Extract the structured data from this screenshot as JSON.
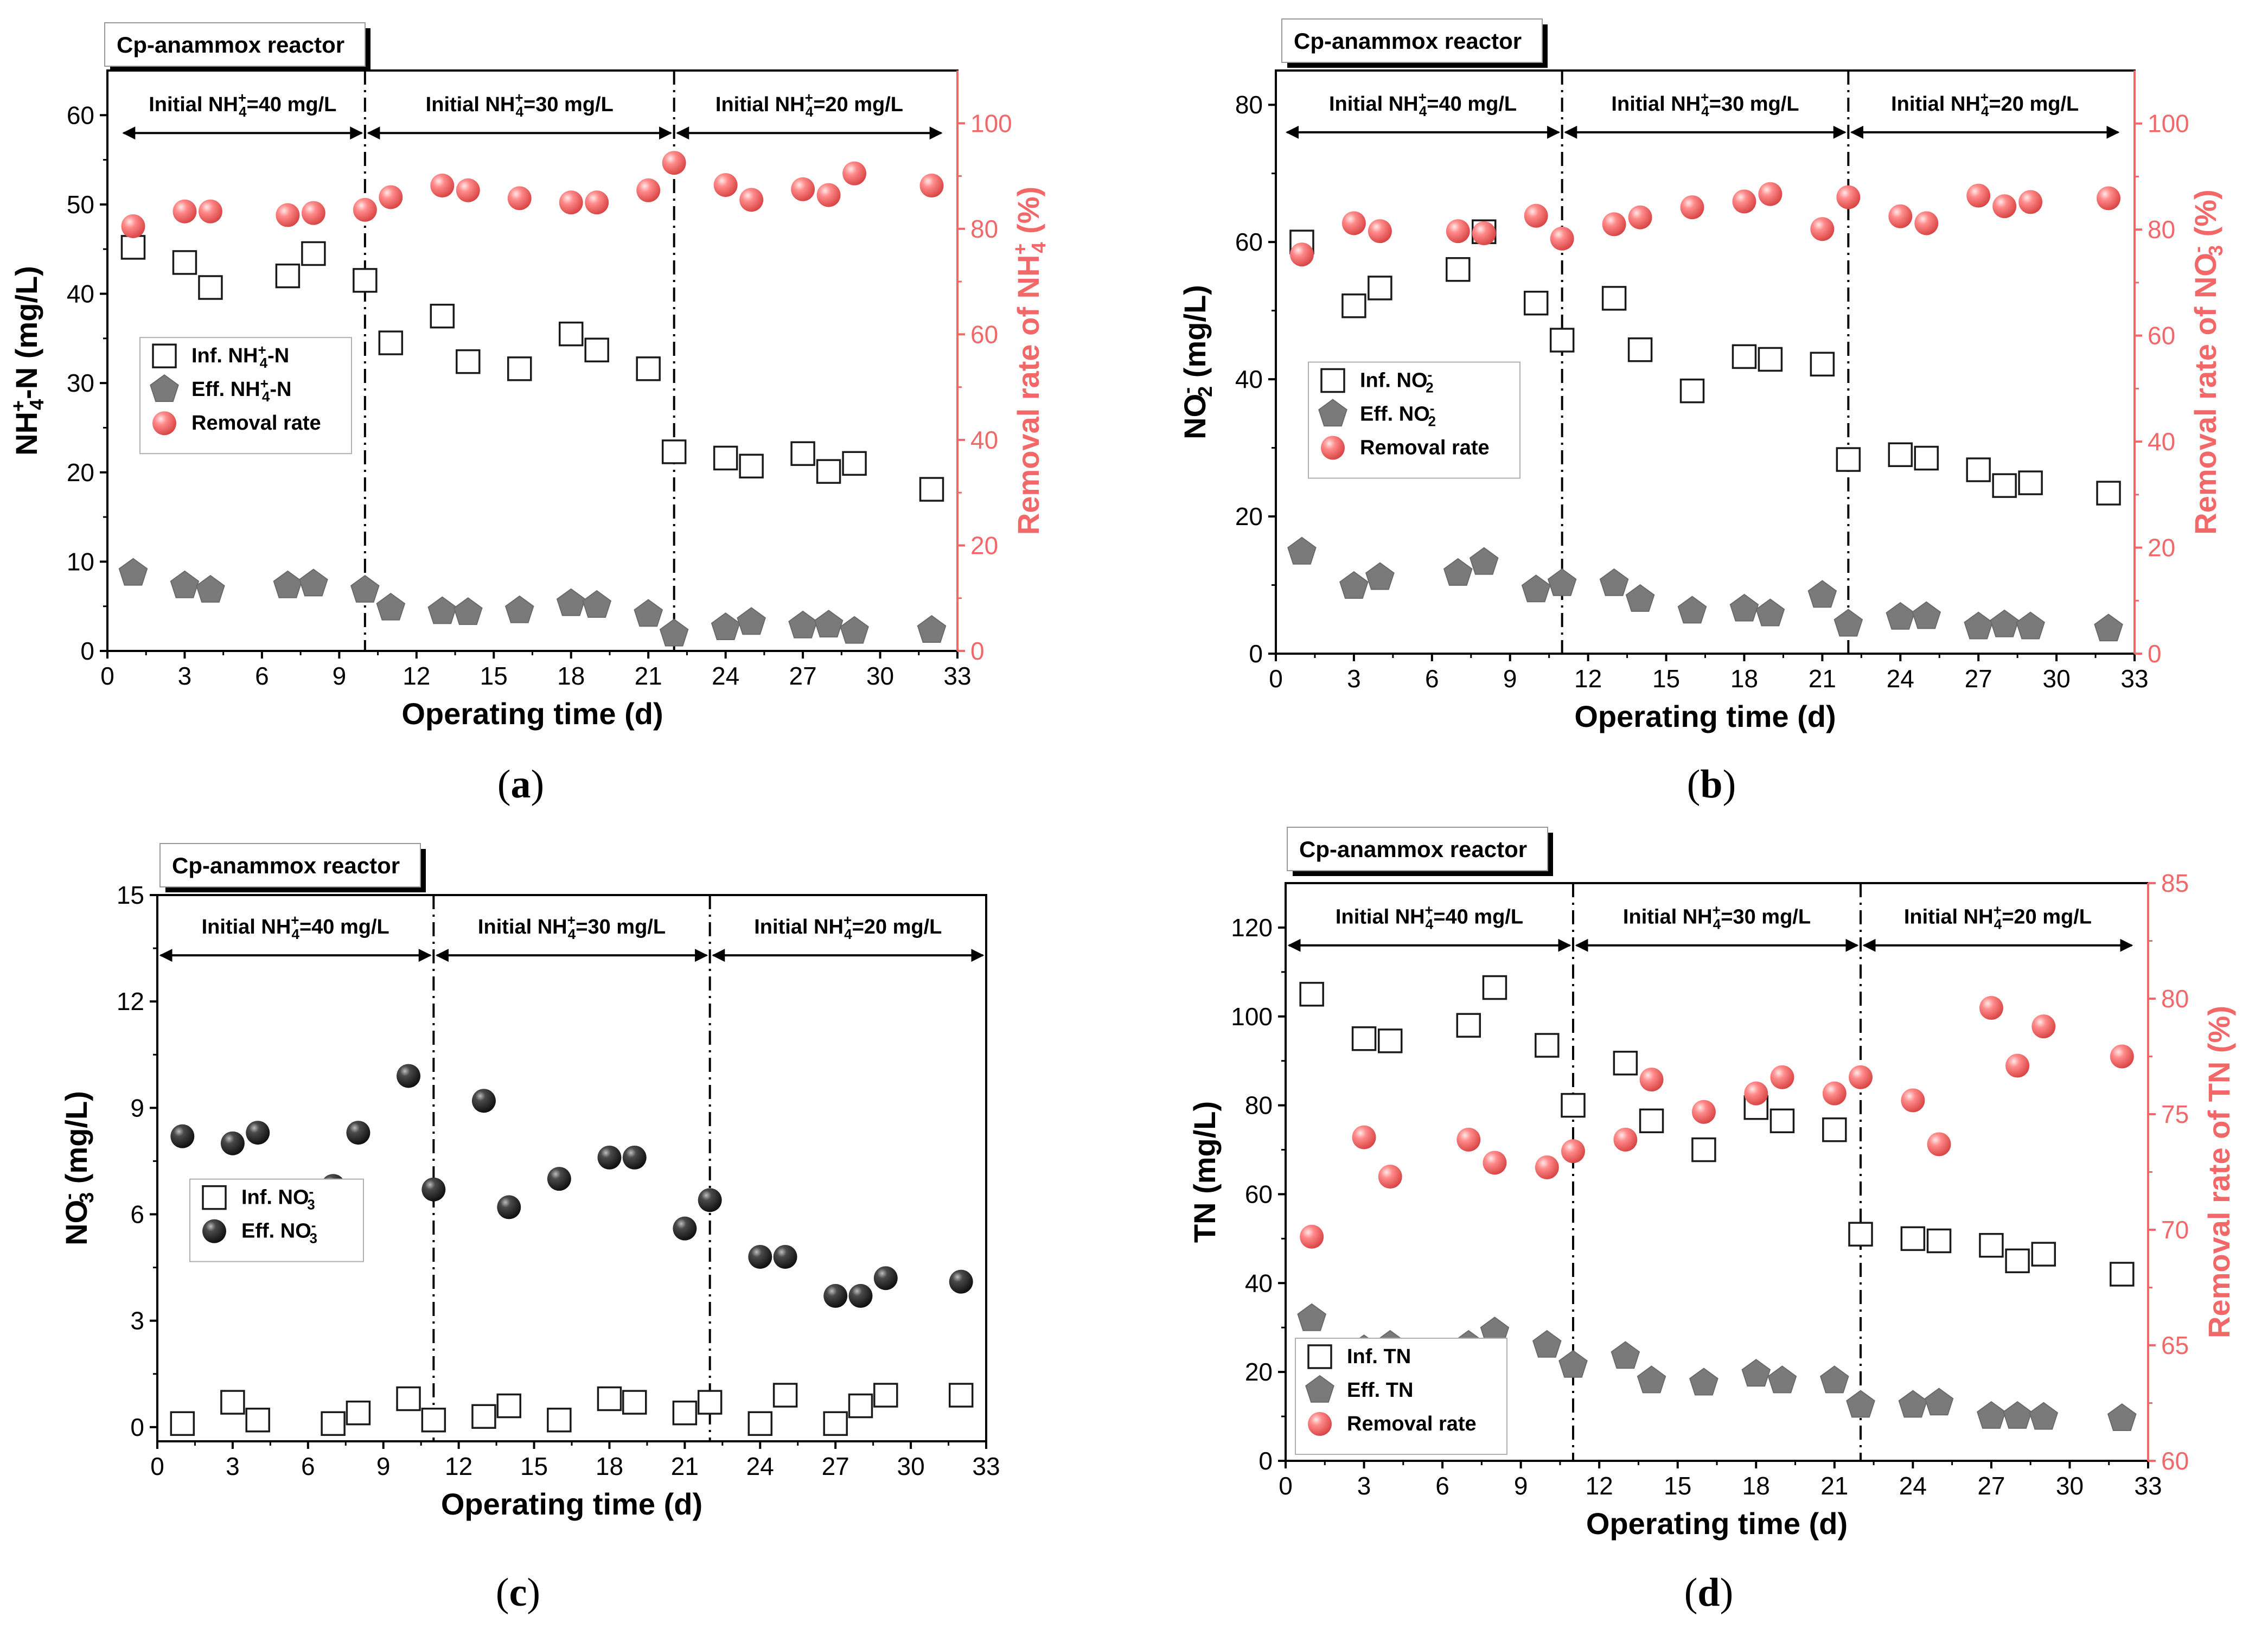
{
  "colors": {
    "axis": "#000000",
    "accent_red": "#f26868",
    "influent_marker": "#ffffff",
    "effluent_gray": "#7a7a7a",
    "nitrate_effluent": "#2e2e2e"
  },
  "chart_data": [
    {
      "type": "scatter",
      "panel": "(a)",
      "title": "Cp-anammox reactor",
      "xlabel": "Operating time (d)",
      "ylabel": "NH4+-N (mg/L)",
      "ylabel_parts": {
        "base": "NH",
        "sub": "4",
        "sup": "+",
        "tail": "-N  (mg/L)"
      },
      "y2label": "Removal rate of NH4+ (%)",
      "y2label_parts": {
        "base": "Removal rate of NH",
        "sub": "4",
        "sup": "+",
        "tail": " (%)"
      },
      "xlim": [
        0,
        33
      ],
      "ylim": [
        0,
        65
      ],
      "y2lim": [
        0,
        110
      ],
      "xticks": [
        0,
        3,
        6,
        9,
        12,
        15,
        18,
        21,
        24,
        27,
        30,
        33
      ],
      "yticks": [
        0,
        10,
        20,
        30,
        40,
        50,
        60
      ],
      "y2ticks": [
        0,
        20,
        40,
        60,
        80,
        100
      ],
      "dividers": [
        10,
        22
      ],
      "periods": [
        {
          "label": "Initial NH4+=40 mg/L",
          "start": 0.5,
          "end": 10
        },
        {
          "label": "Initial NH4+=30 mg/L",
          "start": 10,
          "end": 22
        },
        {
          "label": "Initial NH4+=20 mg/L",
          "start": 22,
          "end": 32.5
        }
      ],
      "period_arrow_y": 58,
      "legend": {
        "position": "middle-left",
        "entries": [
          "Inf. NH4+-N",
          "Eff. NH4+-N",
          "Removal rate"
        ]
      },
      "series": [
        {
          "name": "Inf. NH4+-N",
          "marker": "square",
          "axis": "left",
          "x": [
            1,
            3,
            4,
            7,
            8,
            10,
            11,
            13,
            14,
            16,
            18,
            19,
            21,
            22,
            24,
            25,
            27,
            28,
            29,
            32
          ],
          "y": [
            45.2,
            43.5,
            40.7,
            42,
            44.5,
            41.5,
            34.5,
            37.5,
            32.4,
            31.6,
            35.5,
            33.7,
            31.6,
            22.3,
            21.6,
            20.7,
            22.1,
            20.1,
            21,
            18.1
          ]
        },
        {
          "name": "Eff. NH4+-N",
          "marker": "pentagon",
          "axis": "left",
          "x": [
            1,
            3,
            4,
            7,
            8,
            10,
            11,
            13,
            14,
            16,
            18,
            19,
            21,
            22,
            24,
            25,
            27,
            28,
            29,
            32
          ],
          "y": [
            8.7,
            7.3,
            6.8,
            7.3,
            7.5,
            6.8,
            4.8,
            4.4,
            4.3,
            4.5,
            5.3,
            5.1,
            4.1,
            1.9,
            2.6,
            3.2,
            2.8,
            2.9,
            2.2,
            2.3
          ]
        },
        {
          "name": "Removal rate",
          "marker": "sphere",
          "axis": "right",
          "x": [
            1,
            3,
            4,
            7,
            8,
            10,
            11,
            13,
            14,
            16,
            18,
            19,
            21,
            22,
            24,
            25,
            27,
            28,
            29,
            32
          ],
          "y": [
            80.5,
            83.3,
            83.3,
            82.6,
            83,
            83.6,
            86,
            88.2,
            87.3,
            85.8,
            85,
            85,
            87.3,
            92.5,
            88.3,
            85.5,
            87.5,
            86.4,
            90.5,
            88.2
          ]
        }
      ]
    },
    {
      "type": "scatter",
      "panel": "(b)",
      "title": "Cp-anammox reactor",
      "xlabel": "Operating time (d)",
      "ylabel": "NO2- (mg/L)",
      "ylabel_parts": {
        "base": "NO",
        "sub": "2",
        "sup": "-",
        "tail": "  (mg/L)"
      },
      "y2label": "Removal rate of NO3- (%)",
      "y2label_parts": {
        "base": "Removal rate of NO",
        "sub": "3",
        "sup": "-",
        "tail": " (%)"
      },
      "xlim": [
        0,
        33
      ],
      "ylim": [
        0,
        85
      ],
      "y2lim": [
        0,
        110
      ],
      "xticks": [
        0,
        3,
        6,
        9,
        12,
        15,
        18,
        21,
        24,
        27,
        30,
        33
      ],
      "yticks": [
        0,
        20,
        40,
        60,
        80
      ],
      "y2ticks": [
        0,
        20,
        40,
        60,
        80,
        100
      ],
      "dividers": [
        11,
        22
      ],
      "periods": [
        {
          "label": "Initial NH4+=40 mg/L",
          "start": 0.3,
          "end": 11
        },
        {
          "label": "Initial NH4+=30 mg/L",
          "start": 11,
          "end": 22
        },
        {
          "label": "Initial NH4+=20 mg/L",
          "start": 22,
          "end": 32.5
        }
      ],
      "period_arrow_y": 76,
      "legend": {
        "position": "middle-left",
        "entries": [
          "Inf. NO2-",
          "Eff. NO2-",
          "Removal rate"
        ]
      },
      "series": [
        {
          "name": "Inf. NO2-",
          "marker": "square",
          "axis": "left",
          "x": [
            1,
            3,
            4,
            7,
            8,
            10,
            11,
            13,
            14,
            16,
            18,
            19,
            21,
            22,
            24,
            25,
            27,
            28,
            29,
            32
          ],
          "y": [
            60,
            50.7,
            53.3,
            56,
            61.5,
            51.1,
            45.7,
            51.8,
            44.3,
            38.3,
            43.3,
            42.9,
            42.2,
            28.3,
            29,
            28.5,
            26.8,
            24.5,
            24.9,
            23.4
          ]
        },
        {
          "name": "Eff. NO2-",
          "marker": "pentagon",
          "axis": "left",
          "x": [
            1,
            3,
            4,
            7,
            8,
            10,
            11,
            13,
            14,
            16,
            18,
            19,
            21,
            22,
            24,
            25,
            27,
            28,
            29,
            32
          ],
          "y": [
            14.8,
            9.8,
            11.1,
            11.7,
            13.3,
            9.3,
            10.2,
            10.2,
            7.9,
            6.2,
            6.5,
            5.8,
            8.5,
            4.3,
            5.3,
            5.4,
            3.9,
            4.2,
            3.9,
            3.6
          ]
        },
        {
          "name": "Removal rate",
          "marker": "sphere",
          "axis": "right",
          "x": [
            1,
            3,
            4,
            7,
            8,
            10,
            11,
            13,
            14,
            16,
            18,
            19,
            21,
            22,
            24,
            25,
            27,
            28,
            29,
            32
          ],
          "y": [
            75.3,
            81.2,
            79.7,
            79.7,
            79.3,
            82.6,
            78.3,
            81,
            82.3,
            84.2,
            85.3,
            86.7,
            80.1,
            86.1,
            82.5,
            81.2,
            86.4,
            84.4,
            85.2,
            85.9
          ]
        }
      ]
    },
    {
      "type": "scatter",
      "panel": "(c)",
      "title": "Cp-anammox reactor",
      "xlabel": "Operating time (d)",
      "ylabel": "NO3- (mg/L)",
      "ylabel_parts": {
        "base": "NO",
        "sub": "3",
        "sup": "-",
        "tail": "  (mg/L)"
      },
      "xlim": [
        0,
        33
      ],
      "ylim": [
        -0.4,
        15
      ],
      "xticks": [
        0,
        3,
        6,
        9,
        12,
        15,
        18,
        21,
        24,
        27,
        30,
        33
      ],
      "yticks": [
        0,
        3,
        6,
        9,
        12,
        15
      ],
      "dividers": [
        11,
        22
      ],
      "periods": [
        {
          "label": "Initial NH4+=40 mg/L",
          "start": 0,
          "end": 11
        },
        {
          "label": "Initial NH4+=30 mg/L",
          "start": 11,
          "end": 22
        },
        {
          "label": "Initial NH4+=20 mg/L",
          "start": 22,
          "end": 33
        }
      ],
      "period_arrow_y": 13.3,
      "legend": {
        "position": "middle-left",
        "entries": [
          "Inf. NO3-",
          "Eff. NO3-"
        ]
      },
      "series": [
        {
          "name": "Inf. NO3-",
          "marker": "square",
          "axis": "left",
          "x": [
            1,
            3,
            4,
            7,
            8,
            10,
            11,
            13,
            14,
            16,
            18,
            19,
            21,
            22,
            24,
            25,
            27,
            28,
            29,
            32
          ],
          "y": [
            0.1,
            0.7,
            0.2,
            0.1,
            0.4,
            0.8,
            0.2,
            0.3,
            0.6,
            0.2,
            0.8,
            0.7,
            0.4,
            0.7,
            0.1,
            0.9,
            0.1,
            0.6,
            0.9,
            0.9
          ]
        },
        {
          "name": "Eff. NO3-",
          "marker": "sphere-dark",
          "axis": "left",
          "x": [
            1,
            3,
            4,
            7,
            8,
            10,
            11,
            13,
            14,
            16,
            18,
            19,
            21,
            22,
            24,
            25,
            27,
            28,
            29,
            32
          ],
          "y": [
            8.2,
            8,
            8.3,
            6.8,
            8.3,
            9.9,
            6.7,
            9.2,
            6.2,
            7,
            7.6,
            7.6,
            5.6,
            6.4,
            4.8,
            4.8,
            3.7,
            3.7,
            4.2,
            4.1
          ]
        }
      ]
    },
    {
      "type": "scatter",
      "panel": "(d)",
      "title": "Cp-anammox reactor",
      "xlabel": "Operating time (d)",
      "ylabel": "TN (mg/L)",
      "ylabel_parts": {
        "base": "TN",
        "sub": "",
        "sup": "",
        "tail": "  (mg/L)"
      },
      "y2label": "Removal rate of TN (%)",
      "y2label_parts": {
        "base": "Removal rate of TN (%)",
        "sub": "",
        "sup": "",
        "tail": ""
      },
      "xlim": [
        0,
        33
      ],
      "ylim": [
        0,
        130
      ],
      "y2lim": [
        60,
        85
      ],
      "xticks": [
        0,
        3,
        6,
        9,
        12,
        15,
        18,
        21,
        24,
        27,
        30,
        33
      ],
      "yticks": [
        0,
        20,
        40,
        60,
        80,
        100,
        120
      ],
      "y2ticks": [
        60,
        65,
        70,
        75,
        80,
        85
      ],
      "dividers": [
        11,
        22
      ],
      "periods": [
        {
          "label": "Initial NH4+=40 mg/L",
          "start": 0,
          "end": 11
        },
        {
          "label": "Initial NH4+=30 mg/L",
          "start": 11,
          "end": 22
        },
        {
          "label": "Initial NH4+=20 mg/L",
          "start": 22,
          "end": 32.5
        }
      ],
      "period_arrow_y": 116,
      "legend": {
        "position": "bottom-left",
        "entries": [
          "Inf. TN",
          "Eff. TN",
          "Removal rate"
        ]
      },
      "series": [
        {
          "name": "Inf. TN",
          "marker": "square",
          "axis": "left",
          "x": [
            1,
            3,
            4,
            7,
            8,
            10,
            11,
            13,
            14,
            16,
            18,
            19,
            21,
            22,
            24,
            25,
            27,
            28,
            29,
            32
          ],
          "y": [
            105,
            95,
            94.5,
            98,
            106.5,
            93.5,
            80,
            89.5,
            76.5,
            70,
            79.5,
            76.5,
            74.5,
            51,
            50,
            49.5,
            48.5,
            45,
            46.5,
            42
          ]
        },
        {
          "name": "Eff. TN",
          "marker": "pentagon",
          "axis": "left",
          "x": [
            1,
            3,
            4,
            7,
            8,
            10,
            11,
            13,
            14,
            16,
            18,
            19,
            21,
            22,
            24,
            25,
            27,
            28,
            29,
            32
          ],
          "y": [
            32,
            25,
            26,
            26,
            29,
            26,
            21.5,
            23.5,
            18,
            17.5,
            19.5,
            18,
            18,
            12.5,
            12.5,
            13,
            10,
            10,
            9.8,
            9.5
          ]
        },
        {
          "name": "Removal rate",
          "marker": "sphere",
          "axis": "right",
          "x": [
            1,
            3,
            4,
            7,
            8,
            10,
            11,
            13,
            14,
            16,
            18,
            19,
            21,
            22,
            24,
            25,
            27,
            28,
            29,
            32
          ],
          "y": [
            69.7,
            74,
            72.3,
            73.9,
            72.9,
            72.7,
            73.4,
            73.9,
            76.5,
            75.1,
            75.9,
            76.6,
            75.9,
            76.6,
            75.6,
            73.7,
            79.6,
            77.1,
            78.8,
            77.5
          ]
        }
      ]
    }
  ]
}
